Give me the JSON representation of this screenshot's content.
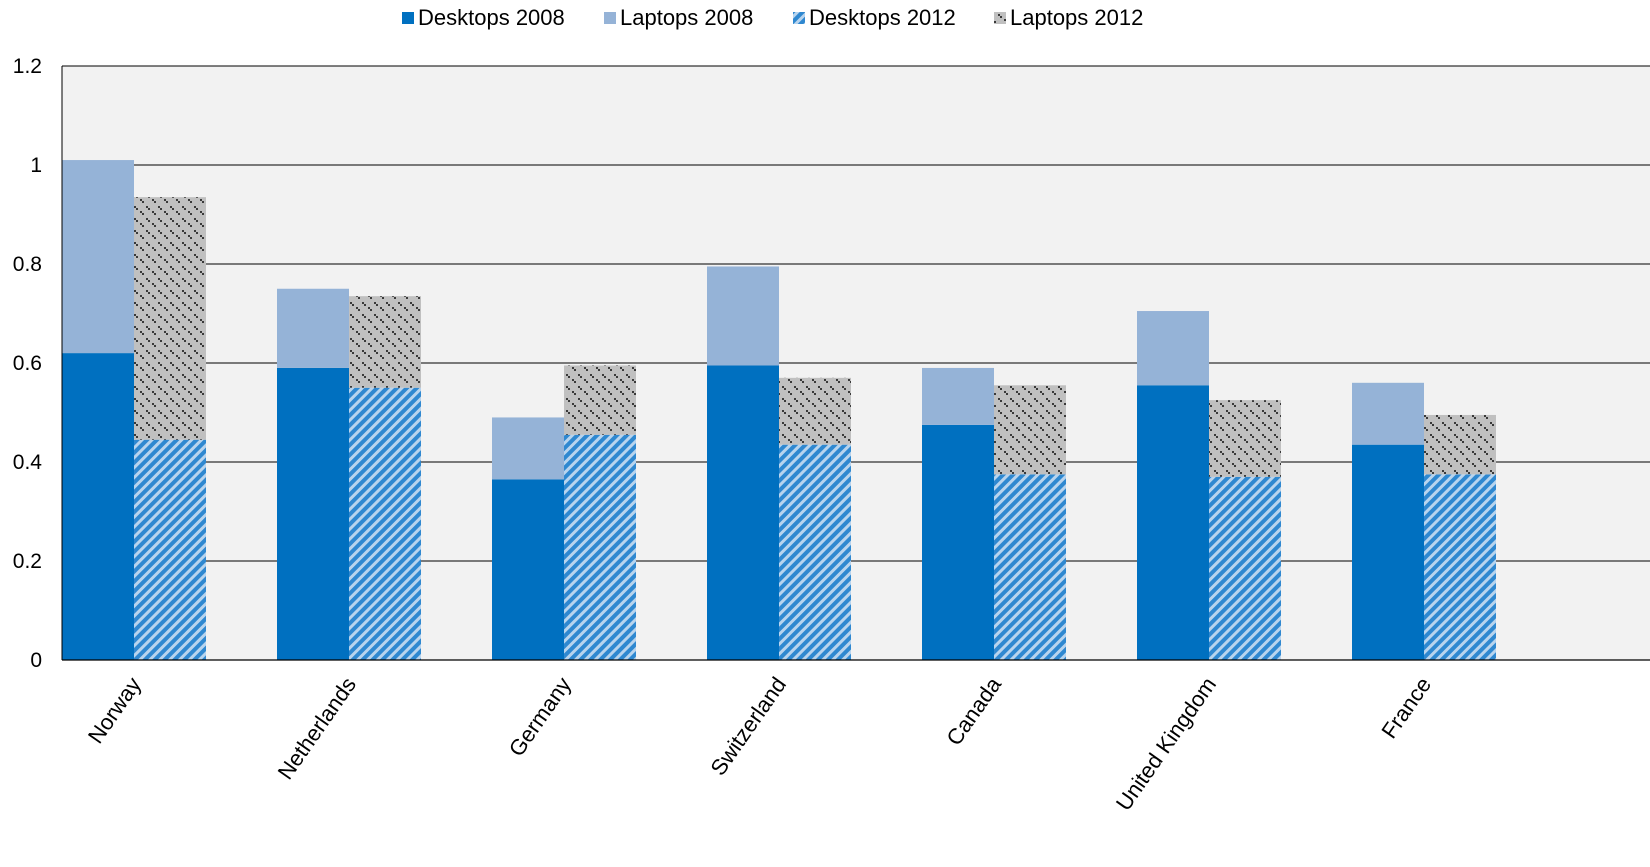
{
  "chart_data": {
    "type": "bar",
    "stacked_groups": true,
    "categories": [
      "Norway",
      "Netherlands",
      "Germany",
      "Switzerland",
      "Canada",
      "United Kingdom",
      "France"
    ],
    "series": [
      {
        "name": "Desktops 2008",
        "stack": "2008",
        "values": [
          0.62,
          0.59,
          0.365,
          0.595,
          0.475,
          0.555,
          0.435
        ]
      },
      {
        "name": "Laptops 2008",
        "stack": "2008",
        "values": [
          0.39,
          0.16,
          0.125,
          0.2,
          0.115,
          0.15,
          0.125
        ]
      },
      {
        "name": "Desktops 2012",
        "stack": "2012",
        "values": [
          0.445,
          0.55,
          0.455,
          0.435,
          0.375,
          0.37,
          0.375
        ]
      },
      {
        "name": "Laptops 2012",
        "stack": "2012",
        "values": [
          0.49,
          0.185,
          0.14,
          0.135,
          0.18,
          0.155,
          0.12
        ]
      }
    ],
    "ylim": [
      0,
      1.2
    ],
    "yticks": [
      "0",
      "0.2",
      "0.4",
      "0.6",
      "0.8",
      "1",
      "1.2"
    ],
    "grid": true,
    "legend": "top-center",
    "colors": {
      "desktops_2008": "#0070C0",
      "laptops_2008": "#95B3D7",
      "desktops_2012_base": "#B8D4EE",
      "desktops_2012_stripe": "#2F88D0",
      "laptops_2012_base": "#C0C0C0",
      "laptops_2012_mark": "#3A3A3A",
      "plot_background": "#F2F2F2"
    }
  }
}
